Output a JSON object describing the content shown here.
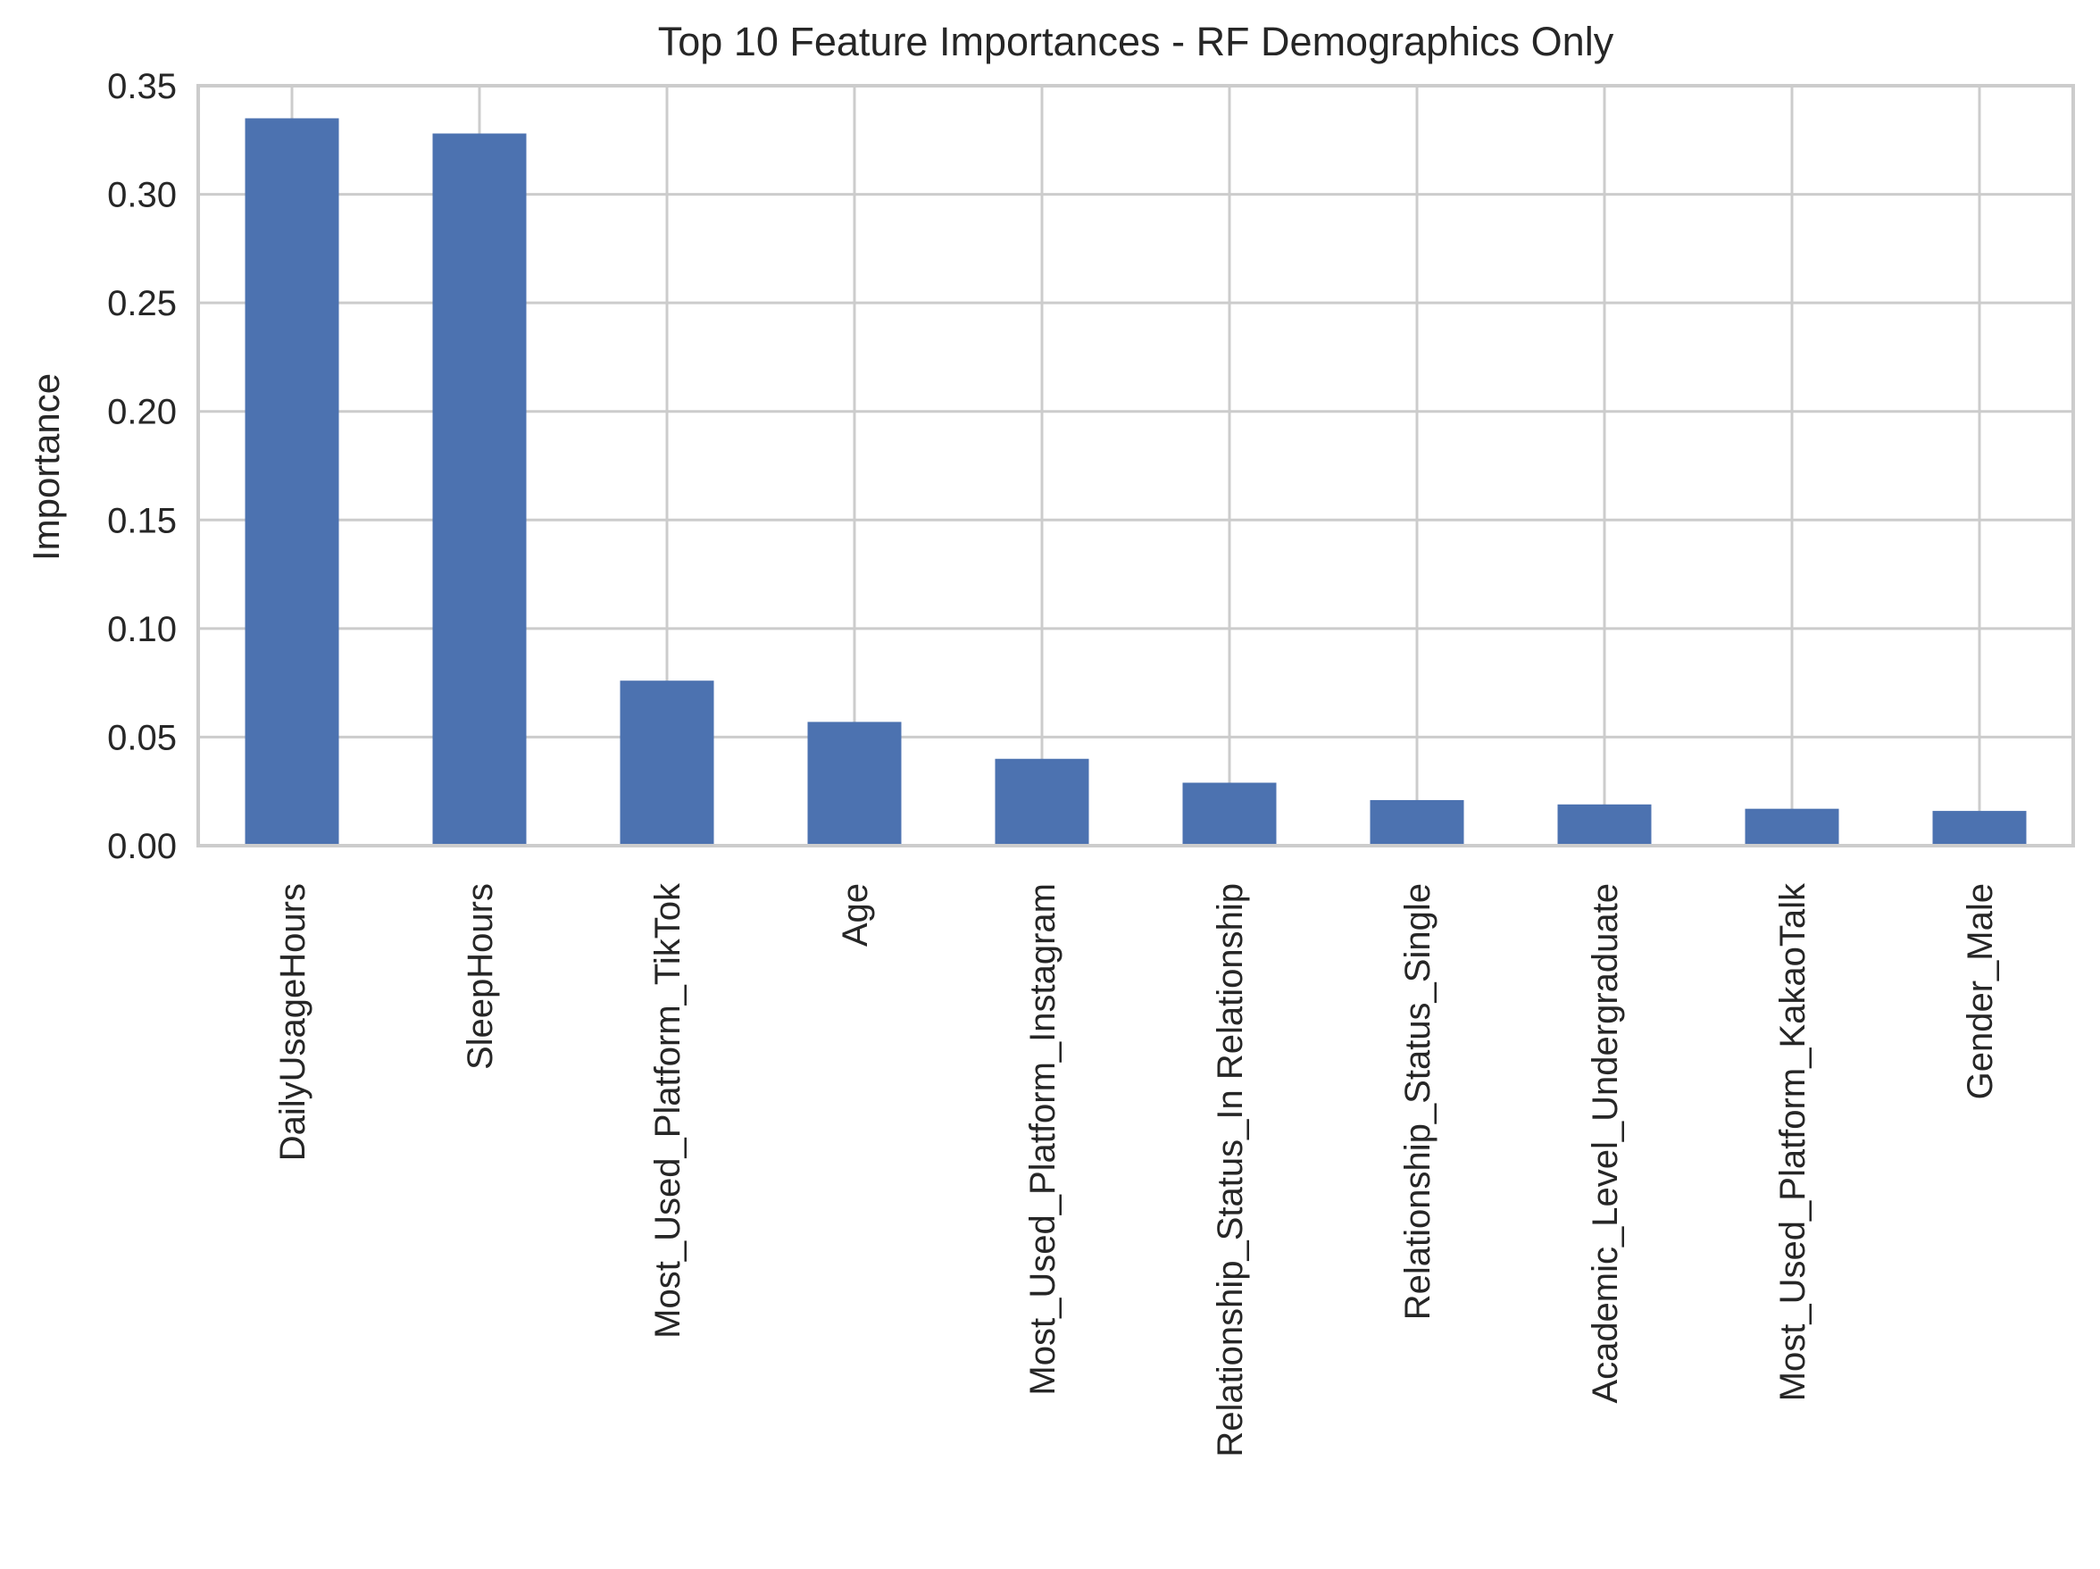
{
  "chart_data": {
    "type": "bar",
    "title": "Top 10 Feature Importances - RF Demographics Only",
    "xlabel": "",
    "ylabel": "Importance",
    "categories": [
      "DailyUsageHours",
      "SleepHours",
      "Most_Used_Platform_TikTok",
      "Age",
      "Most_Used_Platform_Instagram",
      "Relationship_Status_In Relationship",
      "Relationship_Status_Single",
      "Academic_Level_Undergraduate",
      "Most_Used_Platform_KakaoTalk",
      "Gender_Male"
    ],
    "values": [
      0.335,
      0.328,
      0.076,
      0.057,
      0.04,
      0.029,
      0.021,
      0.019,
      0.017,
      0.016
    ],
    "ylim": [
      0,
      0.35
    ],
    "yticks": [
      "0.00",
      "0.05",
      "0.10",
      "0.15",
      "0.20",
      "0.25",
      "0.30",
      "0.35"
    ],
    "grid": true,
    "legend": "none",
    "colors": {
      "bar": "#4c72b0",
      "grid": "#cccccc",
      "spine": "#cccccc",
      "text": "#262626",
      "background": "#ffffff"
    }
  }
}
